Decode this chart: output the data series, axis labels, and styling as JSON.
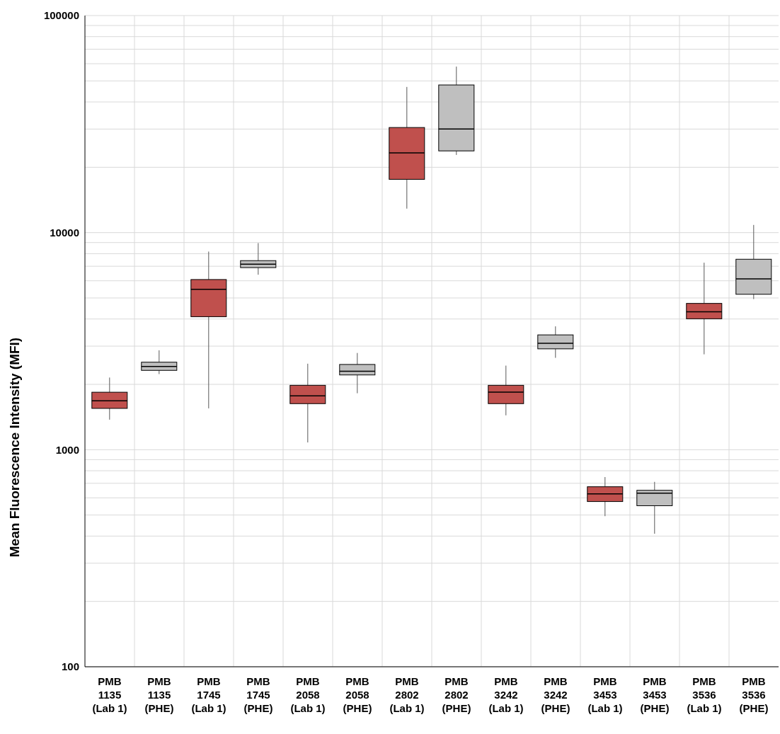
{
  "chart_data": {
    "type": "box",
    "ylabel": "Mean Fluorescence Intensity (MFI)",
    "log": "y",
    "grid": true,
    "categories": [
      "PMB\n1135\n(Lab 1)",
      "PMB\n1135\n(PHE)",
      "PMB\n1745\n(Lab 1)",
      "PMB\n1745\n(PHE)",
      "PMB\n2058\n(Lab 1)",
      "PMB\n2058\n(PHE)",
      "PMB\n2802\n(Lab 1)",
      "PMB\n2802\n(PHE)",
      "PMB\n3242\n(Lab 1)",
      "PMB\n3242\n(PHE)",
      "PMB\n3453\n(Lab 1)",
      "PMB\n3453\n(PHE)",
      "PMB\n3536\n(Lab 1)",
      "PMB\n3536\n(PHE)"
    ],
    "colors": [
      "#c0504d",
      "#bfbfbf",
      "#c0504d",
      "#bfbfbf",
      "#c0504d",
      "#bfbfbf",
      "#c0504d",
      "#bfbfbf",
      "#c0504d",
      "#bfbfbf",
      "#c0504d",
      "#bfbfbf",
      "#c0504d",
      "#bfbfbf"
    ],
    "boxes": [
      {
        "low": 1375,
        "q1": 1550,
        "median": 1680,
        "q3": 1840,
        "high": 2150
      },
      {
        "low": 2230,
        "q1": 2320,
        "median": 2420,
        "q3": 2530,
        "high": 2870
      },
      {
        "low": 1550,
        "q1": 4100,
        "median": 5480,
        "q3": 6080,
        "high": 8180
      },
      {
        "low": 6400,
        "q1": 6900,
        "median": 7160,
        "q3": 7430,
        "high": 8950
      },
      {
        "low": 1080,
        "q1": 1630,
        "median": 1770,
        "q3": 1980,
        "high": 2490
      },
      {
        "low": 1820,
        "q1": 2210,
        "median": 2300,
        "q3": 2470,
        "high": 2790
      },
      {
        "low": 12900,
        "q1": 17600,
        "median": 23300,
        "q3": 30500,
        "high": 46900
      },
      {
        "low": 22800,
        "q1": 23800,
        "median": 30000,
        "q3": 47900,
        "high": 58200
      },
      {
        "low": 1440,
        "q1": 1630,
        "median": 1840,
        "q3": 1980,
        "high": 2440
      },
      {
        "low": 2650,
        "q1": 2915,
        "median": 3090,
        "q3": 3380,
        "high": 3700
      },
      {
        "low": 494,
        "q1": 577,
        "median": 626,
        "q3": 675,
        "high": 748
      },
      {
        "low": 410,
        "q1": 552,
        "median": 631,
        "q3": 650,
        "high": 711
      },
      {
        "low": 2750,
        "q1": 4010,
        "median": 4320,
        "q3": 4720,
        "high": 7270
      },
      {
        "low": 4940,
        "q1": 5200,
        "median": 6120,
        "q3": 7540,
        "high": 10850
      }
    ],
    "ylim": [
      100,
      100000
    ],
    "yticks": [
      100,
      {
        "value": 200,
        "label": null
      },
      {
        "value": 300,
        "label": null
      },
      {
        "value": 400,
        "label": null
      },
      {
        "value": 500,
        "label": null
      },
      {
        "value": 600,
        "label": null
      },
      {
        "value": 700,
        "label": null
      },
      {
        "value": 800,
        "label": null
      },
      {
        "value": 900,
        "label": null
      },
      1000,
      {
        "value": 2000,
        "label": null
      },
      {
        "value": 3000,
        "label": null
      },
      {
        "value": 4000,
        "label": null
      },
      {
        "value": 5000,
        "label": null
      },
      {
        "value": 6000,
        "label": null
      },
      {
        "value": 7000,
        "label": null
      },
      {
        "value": 8000,
        "label": null
      },
      {
        "value": 9000,
        "label": null
      },
      10000,
      {
        "value": 20000,
        "label": null
      },
      {
        "value": 30000,
        "label": null
      },
      {
        "value": 40000,
        "label": null
      },
      {
        "value": 50000,
        "label": null
      },
      {
        "value": 60000,
        "label": null
      },
      {
        "value": 70000,
        "label": null
      },
      {
        "value": 80000,
        "label": null
      },
      {
        "value": 90000,
        "label": null
      },
      100000
    ]
  }
}
